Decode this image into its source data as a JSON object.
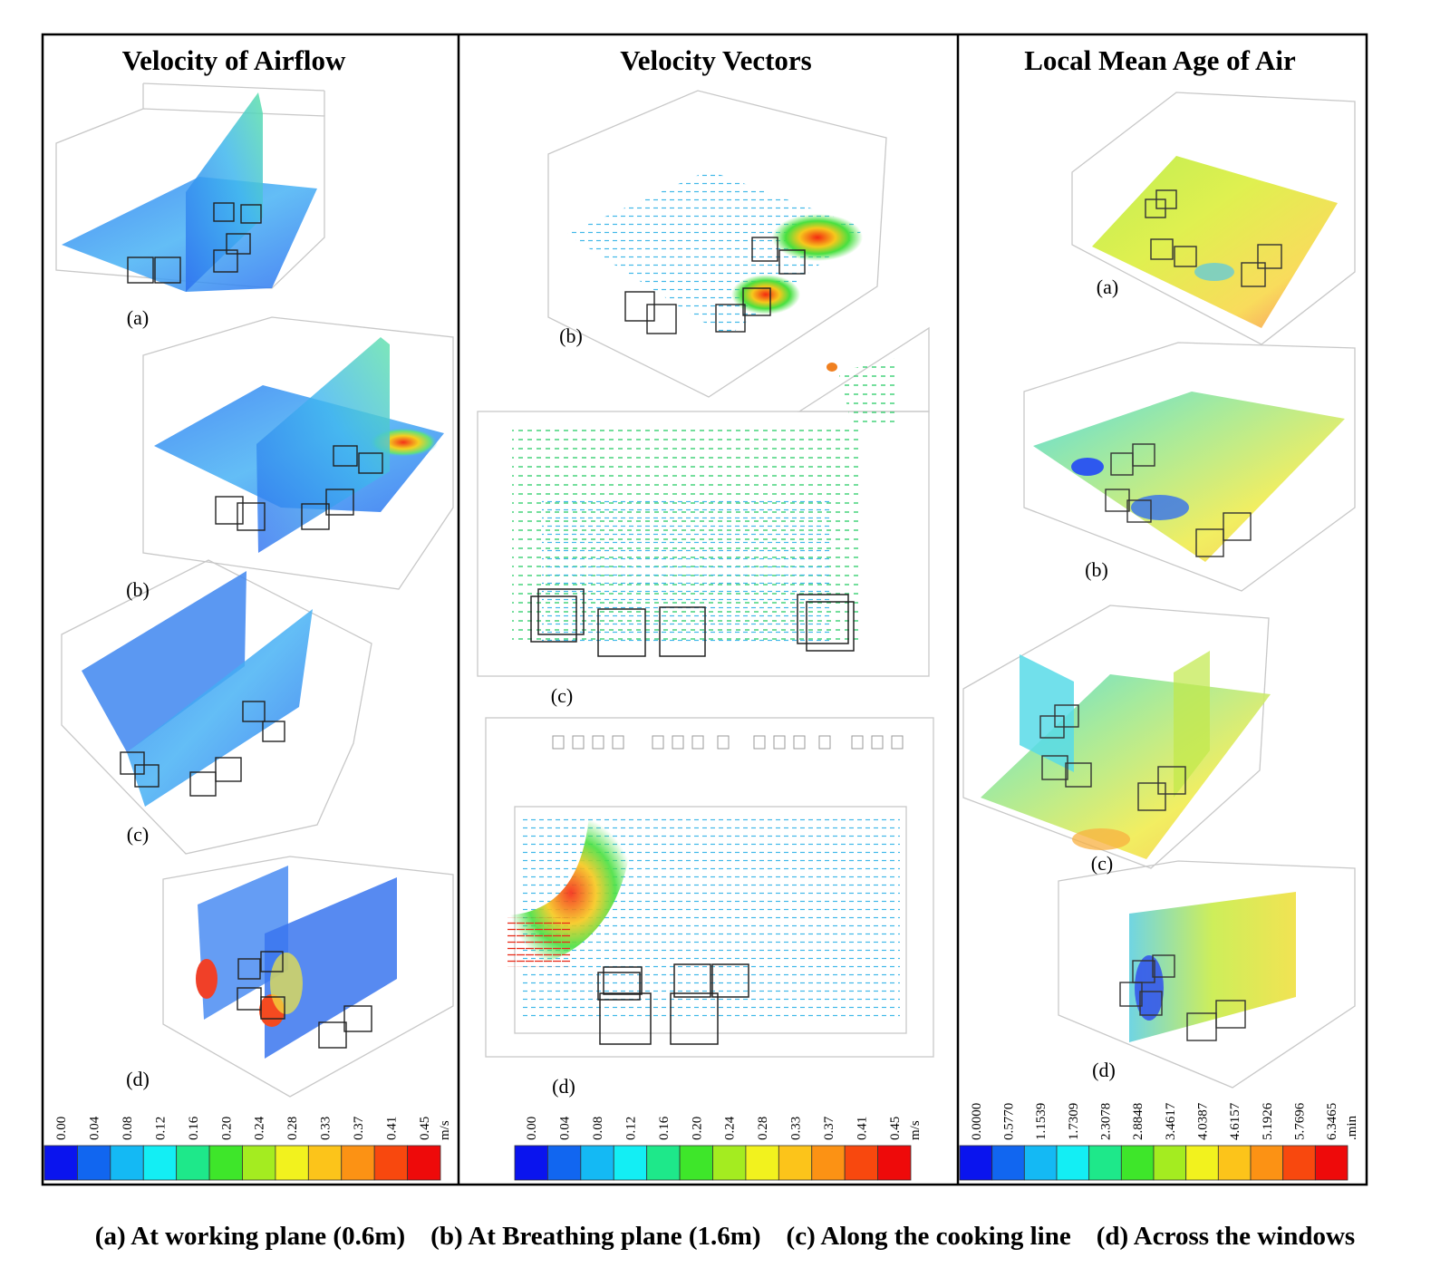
{
  "panels": [
    {
      "title": "Velocity of Airflow",
      "subfigures": [
        "(a)",
        "(b)",
        "(c)",
        "(d)"
      ],
      "colorbar": {
        "ticks": [
          "0.00",
          "0.04",
          "0.08",
          "0.12",
          "0.16",
          "0.20",
          "0.24",
          "0.28",
          "0.33",
          "0.37",
          "0.41",
          "0.45"
        ],
        "unit": "m/s"
      }
    },
    {
      "title": "Velocity  Vectors",
      "subfigures": [
        "(b)",
        "(c)",
        "(d)"
      ],
      "colorbar": {
        "ticks": [
          "0.00",
          "0.04",
          "0.08",
          "0.12",
          "0.16",
          "0.20",
          "0.24",
          "0.28",
          "0.33",
          "0.37",
          "0.41",
          "0.45"
        ],
        "unit": "m/s"
      }
    },
    {
      "title": "Local Mean Age of Air",
      "subfigures": [
        "(a)",
        "(b)",
        "(c)",
        "(d)"
      ],
      "colorbar": {
        "ticks": [
          "0.0000",
          "0.5770",
          "1.1539",
          "1.7309",
          "2.3078",
          "2.8848",
          "3.4617",
          "4.0387",
          "4.6157",
          "5.1926",
          "5.7696",
          "6.3465"
        ],
        "unit": ".min"
      }
    }
  ],
  "colorscale": [
    "#0a14ee",
    "#1166f0",
    "#14b9f4",
    "#13eef4",
    "#1ee88a",
    "#3ee62a",
    "#a4ec20",
    "#f2f21e",
    "#fcc41a",
    "#fc9214",
    "#f8480e",
    "#ee0a0a"
  ],
  "caption": [
    "(a) At working plane (0.6m)",
    "(b) At Breathing plane (1.6m)",
    "(c) Along the cooking line",
    "(d) Across the windows"
  ]
}
